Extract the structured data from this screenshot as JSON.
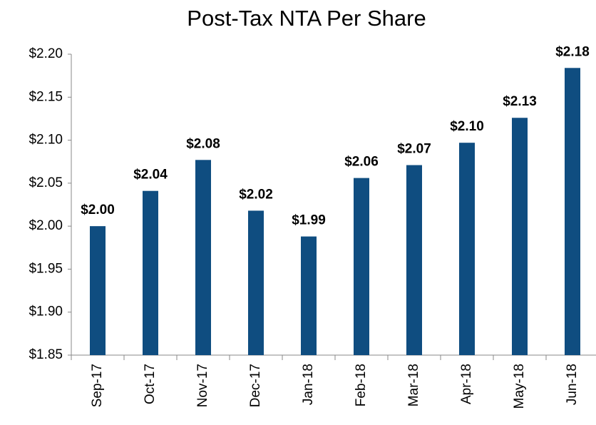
{
  "chart_data": {
    "type": "bar",
    "title": "Post-Tax NTA Per Share",
    "categories": [
      "Sep-17",
      "Oct-17",
      "Nov-17",
      "Dec-17",
      "Jan-18",
      "Feb-18",
      "Mar-18",
      "Apr-18",
      "May-18",
      "Jun-18"
    ],
    "values": [
      2.0,
      2.041,
      2.077,
      2.018,
      1.988,
      2.056,
      2.071,
      2.097,
      2.126,
      2.184
    ],
    "value_labels": [
      "$2.00",
      "$2.04",
      "$2.08",
      "$2.02",
      "$1.99",
      "$2.06",
      "$2.07",
      "$2.10",
      "$2.13",
      "$2.18"
    ],
    "color": "#0f4d80",
    "label_color": "#17375e",
    "ylim": [
      1.85,
      2.2
    ],
    "yticks": [
      {
        "value": 1.85,
        "label": "$1.85"
      },
      {
        "value": 1.9,
        "label": "$1.90"
      },
      {
        "value": 1.95,
        "label": "$1.95"
      },
      {
        "value": 2.0,
        "label": "$2.00"
      },
      {
        "value": 2.05,
        "label": "$2.05"
      },
      {
        "value": 2.1,
        "label": "$2.10"
      },
      {
        "value": 2.15,
        "label": "$2.15"
      },
      {
        "value": 2.2,
        "label": "$2.20"
      }
    ],
    "grid": false
  }
}
